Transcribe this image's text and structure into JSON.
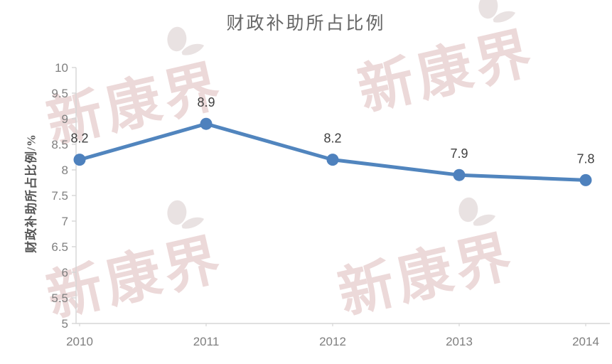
{
  "title": "财政补助所占比例",
  "watermark": {
    "text": "新康界",
    "icon": "chick-logo",
    "text_color": "#ecd9d9",
    "bird_color": "#e9e2e2"
  },
  "chart_data": {
    "type": "line",
    "title": "财政补助所占比例",
    "categories": [
      "2010",
      "2011",
      "2012",
      "2013",
      "2014"
    ],
    "series": [
      {
        "name": "财政补助所占比例",
        "values": [
          8.2,
          8.9,
          8.2,
          7.9,
          7.8
        ]
      }
    ],
    "data_labels": [
      "8.2",
      "8.9",
      "8.2",
      "7.9",
      "7.8"
    ],
    "xlabel": "",
    "ylabel": "财政补助所占比例/%",
    "ylim": [
      5,
      10
    ],
    "ytick_step": 0.5,
    "yticks": [
      "10",
      "9.5",
      "9",
      "8.5",
      "8",
      "7.5",
      "7",
      "6.5",
      "6",
      "5.5",
      "5"
    ],
    "grid": false,
    "legend": "none",
    "line_color": "#5185be",
    "marker_color": "#4e81bd",
    "axis_color": "#d5d5d5",
    "tick_label_color": "#7f7f7f",
    "data_label_color": "#3f3f3f"
  }
}
